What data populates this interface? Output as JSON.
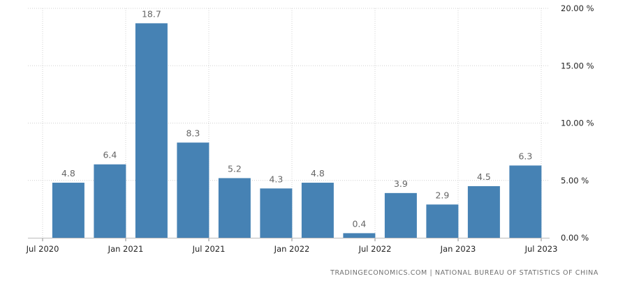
{
  "chart_data": {
    "type": "bar",
    "x_ticks": [
      "Jul 2020",
      "Jan 2021",
      "Jul 2021",
      "Jan 2022",
      "Jul 2022",
      "Jan 2023",
      "Jul 2023"
    ],
    "y_ticks": [
      "0.00 %",
      "5.00 %",
      "10.00 %",
      "15.00 %",
      "20.00 %"
    ],
    "ylim": [
      0,
      20
    ],
    "grid": true,
    "y_axis_side": "right",
    "bar_color": "#4682b4",
    "values": [
      4.8,
      6.4,
      18.7,
      8.3,
      5.2,
      4.3,
      4.8,
      0.4,
      3.9,
      2.9,
      4.5,
      6.3
    ],
    "value_labels": [
      "4.8",
      "6.4",
      "18.7",
      "8.3",
      "5.2",
      "4.3",
      "4.8",
      "0.4",
      "3.9",
      "2.9",
      "4.5",
      "6.3"
    ]
  },
  "source_credit": "TRADINGECONOMICS.COM  |  NATIONAL BUREAU OF STATISTICS OF CHINA"
}
